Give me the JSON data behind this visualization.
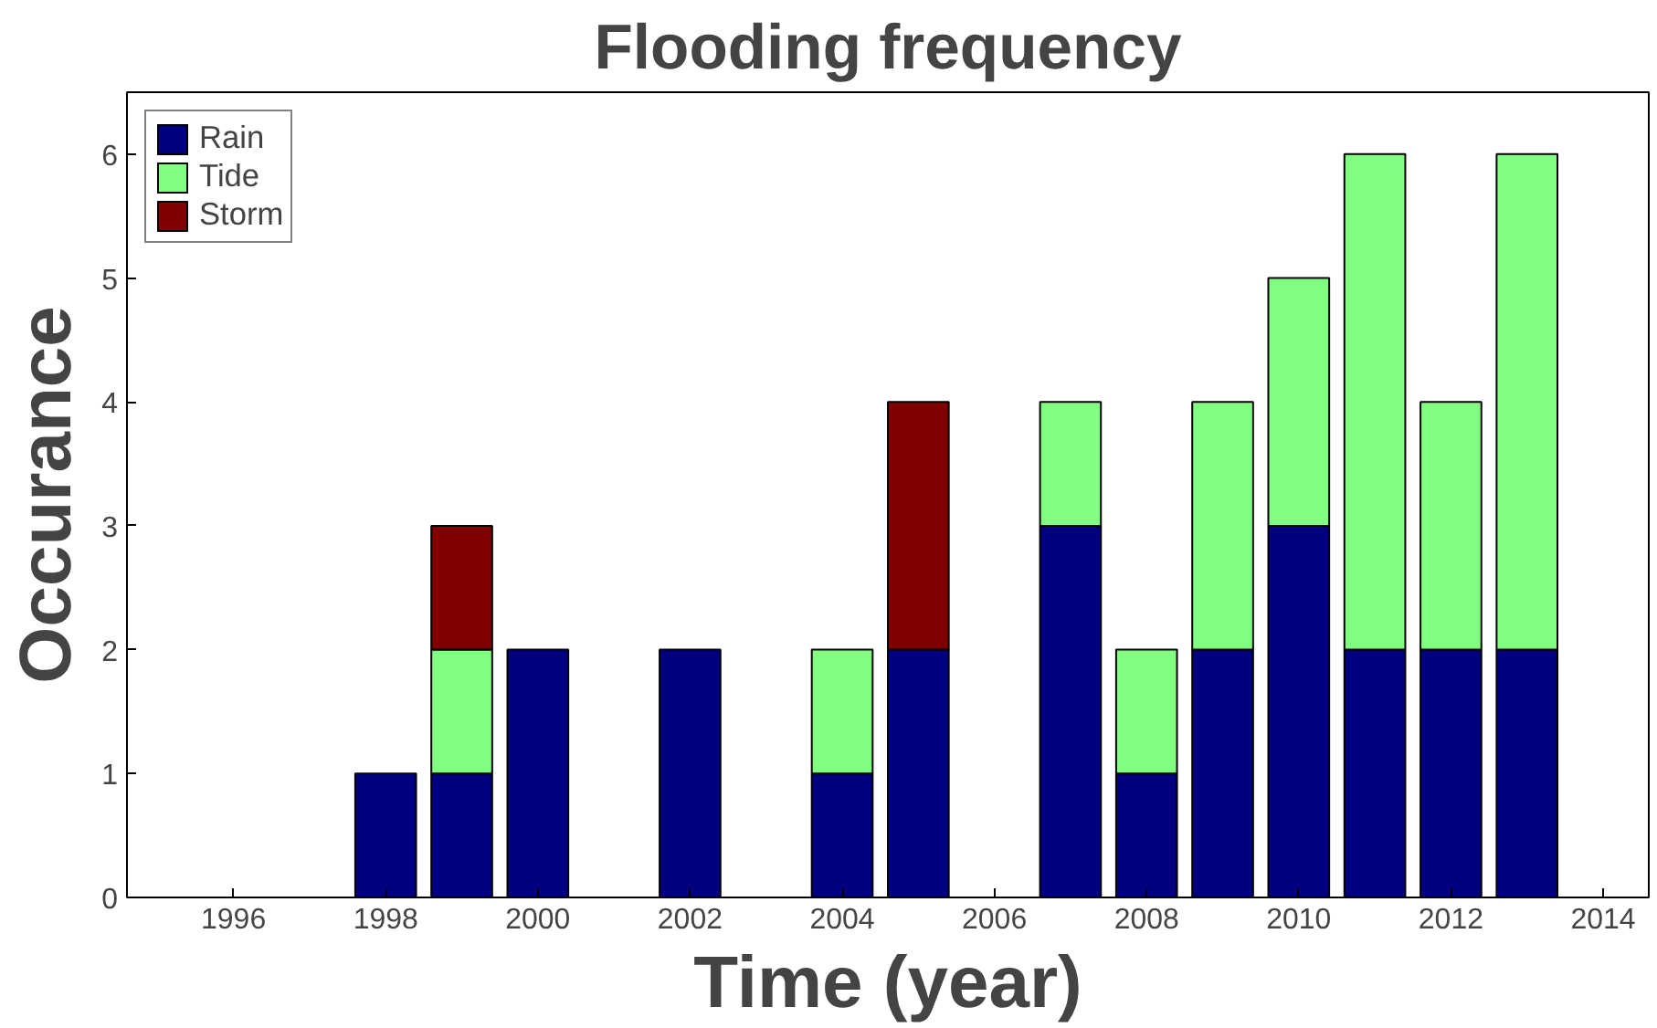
{
  "chart_data": {
    "type": "bar",
    "title": "Flooding frequency",
    "xlabel": "Time (year)",
    "ylabel": "Occurance",
    "stacked": true,
    "x": [
      1998,
      1999,
      2000,
      2002,
      2004,
      2005,
      2007,
      2008,
      2009,
      2010,
      2011,
      2012,
      2013
    ],
    "series": [
      {
        "name": "Rain",
        "color": "#000080",
        "values": [
          1,
          1,
          2,
          2,
          1,
          2,
          3,
          1,
          2,
          3,
          2,
          2,
          2
        ]
      },
      {
        "name": "Tide",
        "color": "#80ff80",
        "values": [
          null,
          1,
          null,
          null,
          1,
          null,
          1,
          1,
          2,
          2,
          4,
          2,
          4
        ]
      },
      {
        "name": "Storm",
        "color": "#800000",
        "values": [
          null,
          1,
          null,
          null,
          null,
          2,
          null,
          null,
          null,
          null,
          null,
          null,
          null
        ]
      }
    ],
    "xlim": [
      1994.6,
      2014.6
    ],
    "xticks": [
      1996,
      1998,
      2000,
      2002,
      2004,
      2006,
      2008,
      2010,
      2012,
      2014
    ],
    "ylim": [
      0,
      6.5
    ],
    "yticks": [
      0,
      1,
      2,
      3,
      4,
      5,
      6
    ],
    "grid": false,
    "legend": "top left"
  }
}
